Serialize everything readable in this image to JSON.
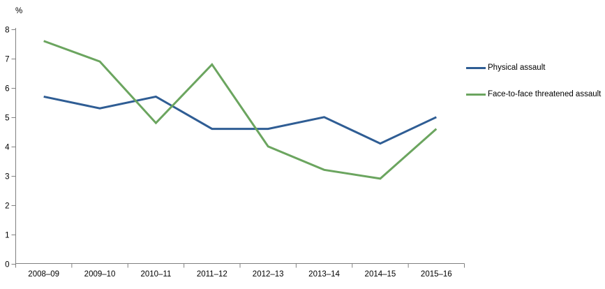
{
  "chart_data": {
    "type": "line",
    "categories": [
      "2008–09",
      "2009–10",
      "2010–11",
      "2011–12",
      "2012–13",
      "2013–14",
      "2014–15",
      "2015–16"
    ],
    "series": [
      {
        "name": "Physical assault",
        "color": "#2F5D94",
        "values": [
          5.7,
          5.3,
          5.7,
          4.6,
          4.6,
          5.0,
          4.1,
          5.0
        ]
      },
      {
        "name": "Face-to-face threatened assault",
        "color": "#6BA55F",
        "values": [
          7.6,
          6.9,
          4.8,
          6.8,
          4.0,
          3.2,
          2.9,
          4.6
        ]
      }
    ],
    "title": "",
    "xlabel": "",
    "ylabel": "%",
    "ylim": [
      0,
      8
    ],
    "y_tick_step": 1,
    "grid": false,
    "legend_position": "right",
    "axis_color": "#808080",
    "tick_label_color": "#000000",
    "line_width": 3
  }
}
